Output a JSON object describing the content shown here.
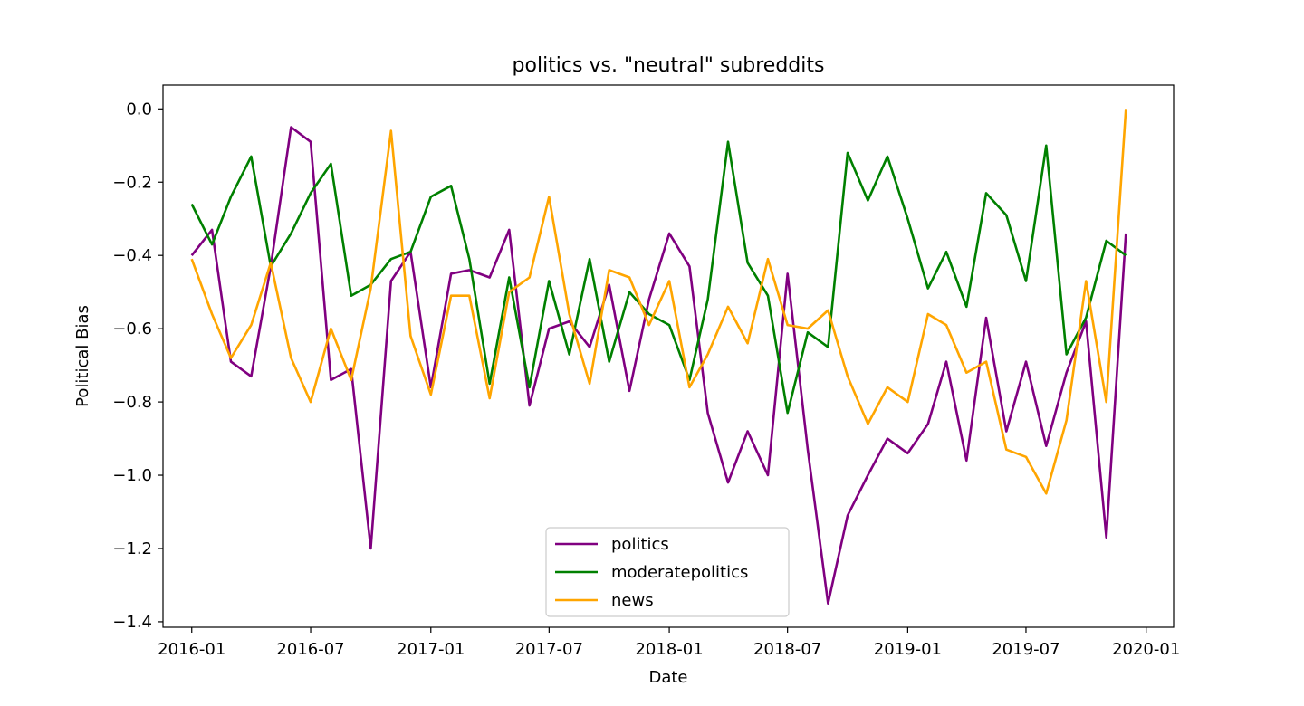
{
  "chart_data": {
    "type": "line",
    "title": "politics vs. \"neutral\" subreddits",
    "xlabel": "Date",
    "ylabel": "Political Bias",
    "x": [
      "2016-01",
      "2016-02",
      "2016-03",
      "2016-04",
      "2016-05",
      "2016-06",
      "2016-07",
      "2016-08",
      "2016-09",
      "2016-10",
      "2016-11",
      "2016-12",
      "2017-01",
      "2017-02",
      "2017-03",
      "2017-04",
      "2017-05",
      "2017-06",
      "2017-07",
      "2017-08",
      "2017-09",
      "2017-10",
      "2017-11",
      "2017-12",
      "2018-01",
      "2018-02",
      "2018-03",
      "2018-04",
      "2018-05",
      "2018-06",
      "2018-07",
      "2018-08",
      "2018-09",
      "2018-10",
      "2018-11",
      "2018-12",
      "2019-01",
      "2019-02",
      "2019-03",
      "2019-04",
      "2019-05",
      "2019-06",
      "2019-07",
      "2019-08",
      "2019-09",
      "2019-10",
      "2019-11",
      "2019-12"
    ],
    "xticks": [
      "2016-01",
      "2016-07",
      "2017-01",
      "2017-07",
      "2018-01",
      "2018-07",
      "2019-01",
      "2019-07",
      "2020-01"
    ],
    "xlim": [
      "2015-11-18",
      "2020-02-12"
    ],
    "yticks": [
      "0.0",
      "−0.2",
      "−0.4",
      "−0.6",
      "−0.8",
      "−1.0",
      "−1.2",
      "−1.4"
    ],
    "ylim": [
      -1.415,
      0.065
    ],
    "grid": false,
    "legend_position": "lower center",
    "series": [
      {
        "name": "politics",
        "color": "#800080",
        "values": [
          -0.4,
          -0.33,
          -0.69,
          -0.73,
          -0.43,
          -0.05,
          -0.09,
          -0.74,
          -0.71,
          -1.2,
          -0.47,
          -0.39,
          -0.76,
          -0.45,
          -0.44,
          -0.46,
          -0.33,
          -0.81,
          -0.6,
          -0.58,
          -0.65,
          -0.48,
          -0.77,
          -0.52,
          -0.34,
          -0.43,
          -0.83,
          -1.02,
          -0.88,
          -1.0,
          -0.45,
          -0.93,
          -1.35,
          -1.11,
          -1.0,
          -0.9,
          -0.94,
          -0.86,
          -0.69,
          -0.96,
          -0.57,
          -0.88,
          -0.69,
          -0.92,
          -0.72,
          -0.58,
          -1.17,
          -0.34
        ]
      },
      {
        "name": "moderatepolitics",
        "color": "#008000",
        "values": [
          -0.26,
          -0.37,
          -0.24,
          -0.13,
          -0.43,
          -0.34,
          -0.23,
          -0.15,
          -0.51,
          -0.48,
          -0.41,
          -0.39,
          -0.24,
          -0.21,
          -0.41,
          -0.75,
          -0.46,
          -0.76,
          -0.47,
          -0.67,
          -0.41,
          -0.69,
          -0.5,
          -0.56,
          -0.59,
          -0.74,
          -0.52,
          -0.09,
          -0.42,
          -0.51,
          -0.83,
          -0.61,
          -0.65,
          -0.12,
          -0.25,
          -0.13,
          -0.3,
          -0.49,
          -0.39,
          -0.54,
          -0.23,
          -0.29,
          -0.47,
          -0.1,
          -0.67,
          -0.57,
          -0.36,
          -0.4
        ]
      },
      {
        "name": "news",
        "color": "#FFA500",
        "values": [
          -0.41,
          -0.56,
          -0.68,
          -0.59,
          -0.42,
          -0.68,
          -0.8,
          -0.6,
          -0.74,
          -0.49,
          -0.06,
          -0.62,
          -0.78,
          -0.51,
          -0.51,
          -0.79,
          -0.5,
          -0.46,
          -0.24,
          -0.56,
          -0.75,
          -0.44,
          -0.46,
          -0.59,
          -0.47,
          -0.76,
          -0.67,
          -0.54,
          -0.64,
          -0.41,
          -0.59,
          -0.6,
          -0.55,
          -0.73,
          -0.86,
          -0.76,
          -0.8,
          -0.56,
          -0.59,
          -0.72,
          -0.69,
          -0.93,
          -0.95,
          -1.05,
          -0.85,
          -0.47,
          -0.8,
          0.0
        ]
      }
    ]
  }
}
